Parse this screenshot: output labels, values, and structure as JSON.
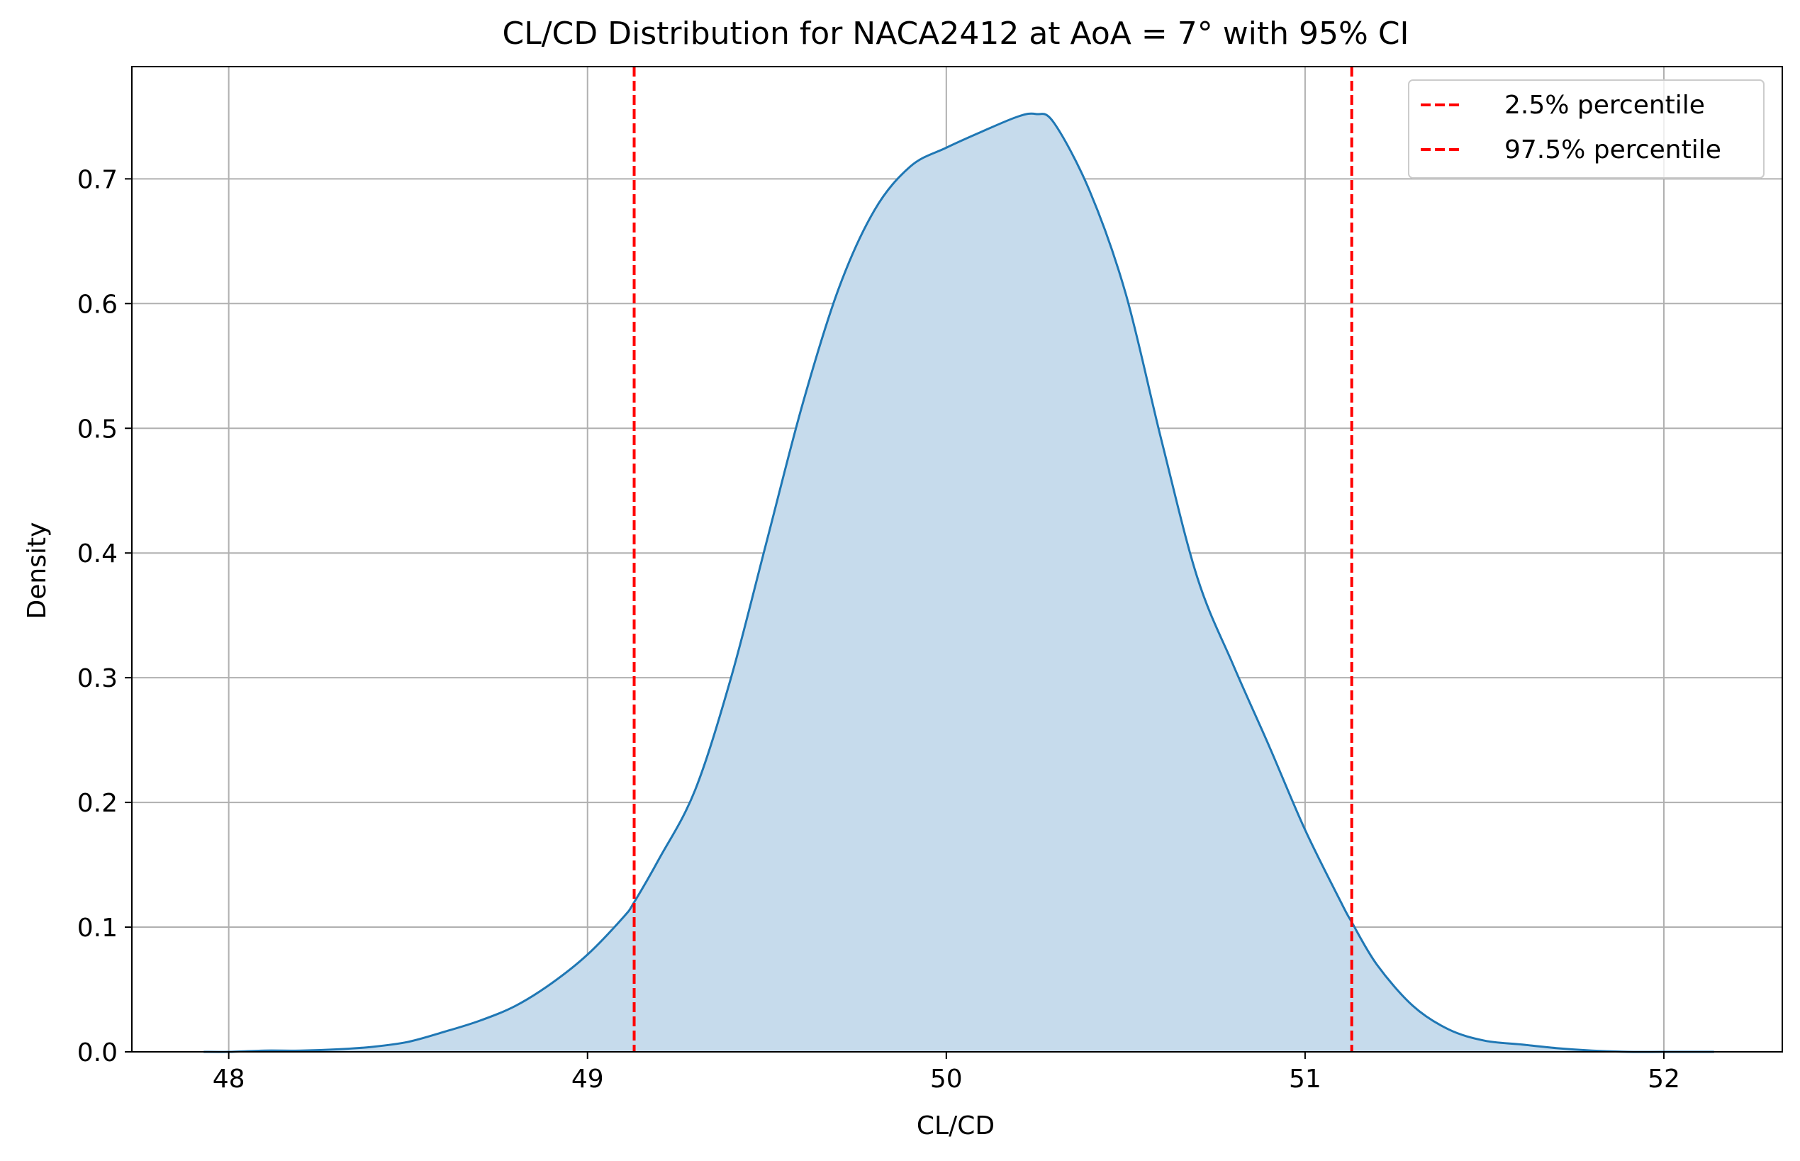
{
  "chart_data": {
    "type": "area",
    "title": "CL/CD Distribution for NACA2412 at AoA = 7° with 95% CI",
    "xlabel": "CL/CD",
    "ylabel": "Density",
    "xlim": [
      47.73,
      52.33
    ],
    "ylim": [
      0.0,
      0.79
    ],
    "x_ticks": [
      48,
      49,
      50,
      51,
      52
    ],
    "y_ticks": [
      0.0,
      0.1,
      0.2,
      0.3,
      0.4,
      0.5,
      0.6,
      0.7
    ],
    "x_tick_labels": [
      "48",
      "49",
      "50",
      "51",
      "52"
    ],
    "y_tick_labels": [
      "0.0",
      "0.1",
      "0.2",
      "0.3",
      "0.4",
      "0.5",
      "0.6",
      "0.7"
    ],
    "grid": true,
    "legend_position": "top-right",
    "series": [
      {
        "kind": "kde",
        "color": "#1f77b4",
        "fill_color": "#c6dbec",
        "x": [
          47.93,
          48.0,
          48.1,
          48.2,
          48.3,
          48.4,
          48.5,
          48.6,
          48.7,
          48.8,
          48.9,
          49.0,
          49.1,
          49.13,
          49.2,
          49.3,
          49.4,
          49.5,
          49.6,
          49.7,
          49.8,
          49.9,
          50.0,
          50.1,
          50.2,
          50.25,
          50.3,
          50.4,
          50.5,
          50.6,
          50.7,
          50.8,
          50.9,
          51.0,
          51.1,
          51.13,
          51.2,
          51.3,
          51.4,
          51.5,
          51.6,
          51.7,
          51.8,
          51.9,
          52.0,
          52.1,
          52.14
        ],
        "y": [
          0.0,
          0.0,
          0.001,
          0.001,
          0.002,
          0.004,
          0.008,
          0.016,
          0.025,
          0.037,
          0.055,
          0.078,
          0.108,
          0.12,
          0.155,
          0.21,
          0.3,
          0.41,
          0.52,
          0.612,
          0.675,
          0.71,
          0.725,
          0.738,
          0.75,
          0.752,
          0.745,
          0.69,
          0.608,
          0.49,
          0.38,
          0.31,
          0.245,
          0.178,
          0.12,
          0.104,
          0.07,
          0.037,
          0.018,
          0.009,
          0.006,
          0.003,
          0.001,
          0.0,
          0.0,
          0.0,
          0.0
        ]
      }
    ],
    "vlines": [
      {
        "name": "2.5% percentile",
        "x": 49.13,
        "color": "#ff0000",
        "style": "dashed"
      },
      {
        "name": "97.5% percentile",
        "x": 51.13,
        "color": "#ff0000",
        "style": "dashed"
      }
    ]
  }
}
